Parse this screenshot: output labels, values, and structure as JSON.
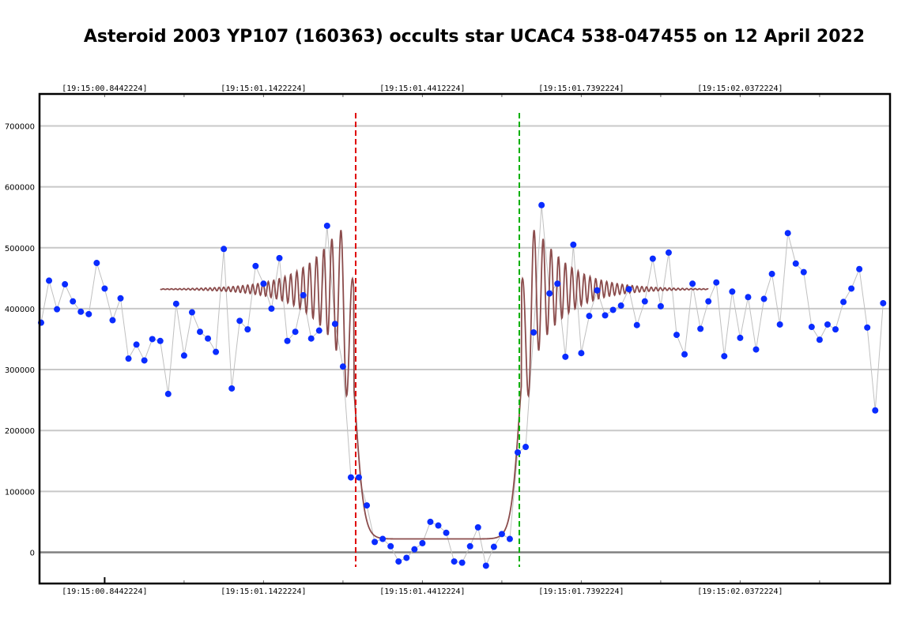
{
  "chart_data": {
    "type": "scatter",
    "title": "Asteroid 2003 YP107 (160363) occults star UCAC4 538-047455 on 12 April 2022",
    "xlabel": "",
    "ylabel": "",
    "ylim": [
      -50000,
      750000
    ],
    "yticks": [
      0,
      100000,
      200000,
      300000,
      400000,
      500000,
      600000,
      700000
    ],
    "ytick_labels": [
      "0",
      "100000",
      "200000",
      "300000",
      "400000",
      "500000",
      "600000",
      "700000"
    ],
    "x_time_labels": [
      "[19:15:00.8442224]",
      "[19:15:01.1422224]",
      "[19:15:01.4412224]",
      "[19:15:01.7392224]",
      "[19:15:02.0372224]"
    ],
    "x_time_label_frames": [
      8,
      28,
      48,
      68,
      88
    ],
    "grid": true,
    "colors": {
      "points": "#0a2cff",
      "connector": "#c0c0c0",
      "model": "#8b4c4c",
      "disappearance_marker": "#e00000",
      "reappearance_marker": "#00b000"
    },
    "series": [
      {
        "x": [
          0,
          1,
          2,
          3,
          4,
          5,
          6,
          7,
          8,
          9,
          10,
          11,
          12,
          13,
          14,
          15,
          16,
          17,
          18,
          19,
          20,
          21,
          22,
          23,
          24,
          25,
          26,
          27,
          28,
          29,
          30,
          31,
          32,
          33,
          34,
          35,
          36,
          37,
          38,
          39,
          40,
          41,
          42,
          43,
          44,
          45,
          46,
          47,
          48,
          49,
          50,
          51,
          52,
          53,
          54,
          55,
          56,
          57,
          58,
          59,
          60,
          61,
          62,
          63,
          64,
          65,
          66,
          67,
          68,
          69,
          70,
          71,
          72,
          73,
          74,
          75,
          76,
          77,
          78,
          79,
          80,
          81,
          82,
          83,
          84,
          85,
          86,
          87,
          88,
          89,
          90,
          91,
          92,
          93,
          94,
          95,
          96,
          97,
          98,
          99,
          100,
          101,
          102,
          103,
          104,
          105,
          106
        ],
        "values": [
          377000,
          446000,
          399000,
          440000,
          412000,
          395000,
          391000,
          475000,
          433000,
          381000,
          417000,
          318000,
          341000,
          315000,
          350000,
          347000,
          260000,
          408000,
          323000,
          394000,
          362000,
          351000,
          329000,
          498000,
          269000,
          380000,
          366000,
          470000,
          441000,
          400000,
          483000,
          347000,
          362000,
          422000,
          351000,
          364000,
          536000,
          375000,
          305000,
          123000,
          123000,
          77000,
          17000,
          22000,
          10000,
          -15000,
          -9000,
          5000,
          15000,
          50000,
          44000,
          32000,
          -15000,
          -17000,
          10000,
          41000,
          -22000,
          9000,
          30000,
          22000,
          164000,
          173000,
          361000,
          570000,
          425000,
          441000,
          321000,
          505000,
          327000,
          388000,
          430000,
          389000,
          398000,
          405000,
          432000,
          373000,
          412000,
          482000,
          404000,
          492000,
          357000,
          325000,
          441000,
          367000,
          412000,
          443000,
          322000,
          428000,
          352000,
          419000,
          333000,
          416000,
          457000,
          374000,
          524000,
          474000,
          460000,
          370000,
          349000,
          374000,
          366000,
          411000,
          433000,
          465000,
          369000,
          233000,
          409000
        ]
      }
    ],
    "model_curve": {
      "baseline": 432000,
      "bottom": 22000,
      "x_start": 15,
      "x_end": 84,
      "disappearance_x": 39.6,
      "reappearance_x": 60.2,
      "peak": 578000
    }
  }
}
